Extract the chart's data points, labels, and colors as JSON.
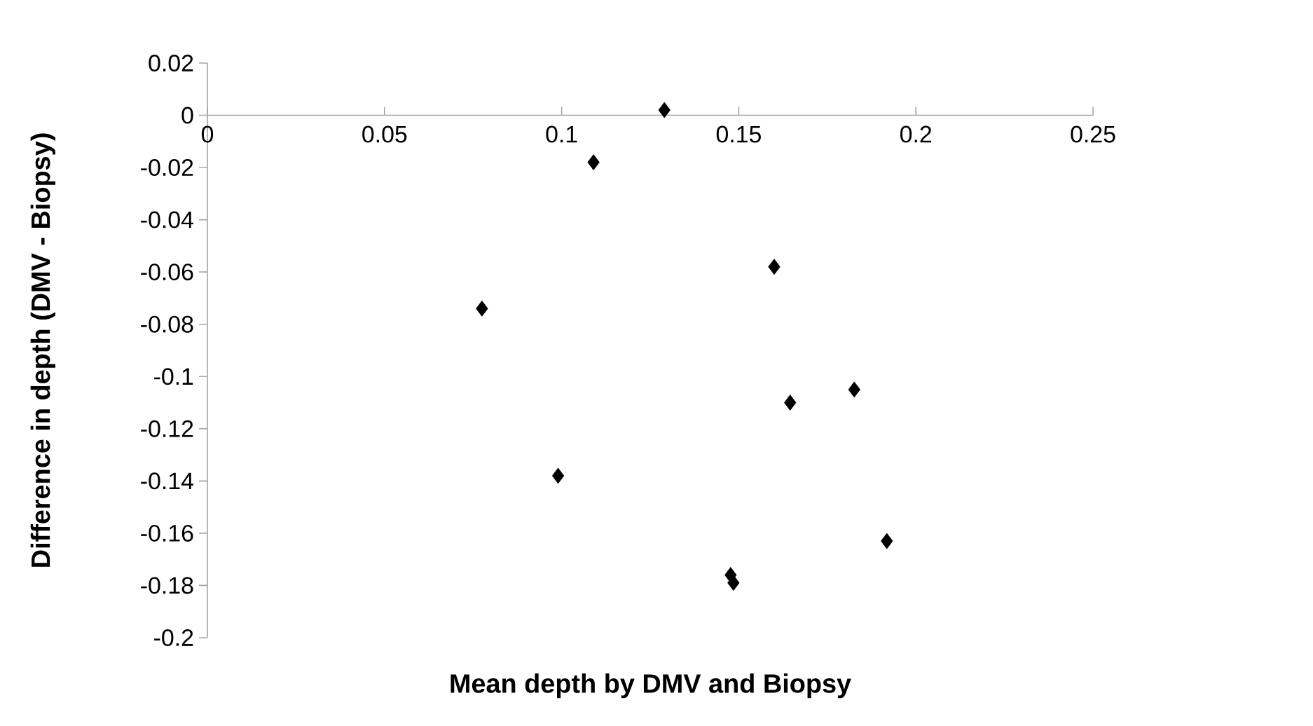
{
  "chart_data": {
    "type": "scatter",
    "xlabel": "Mean depth by DMV and Biopsy",
    "ylabel": "Difference in depth (DMV - Biopsy)",
    "x": [
      0.129,
      0.109,
      0.16,
      0.0775,
      0.099,
      0.1477,
      0.1485,
      0.1645,
      0.1826,
      0.1918
    ],
    "values": [
      0.002,
      -0.018,
      -0.058,
      -0.074,
      -0.138,
      -0.176,
      -0.179,
      -0.11,
      -0.105,
      -0.163
    ],
    "color": "#000000",
    "marker": "diamond",
    "grid": false,
    "xlim": [
      0,
      0.25
    ],
    "ylim": [
      -0.2,
      0.02
    ],
    "xticks": [
      0,
      0.05,
      0.1,
      0.15,
      0.2,
      0.25
    ],
    "yticks": [
      0.02,
      0,
      -0.02,
      -0.04,
      -0.06,
      -0.08,
      -0.1,
      -0.12,
      -0.14,
      -0.16,
      -0.18,
      -0.2
    ]
  }
}
